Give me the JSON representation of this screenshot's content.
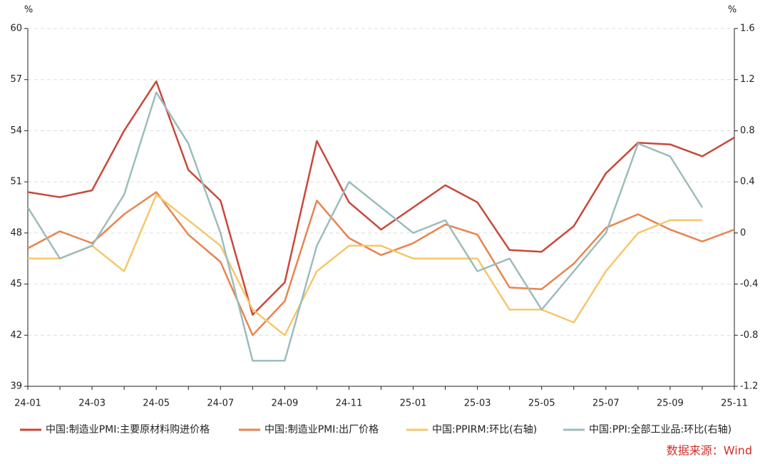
{
  "chart_data": {
    "type": "line",
    "y_label": "%",
    "y2_label": "%",
    "categories": [
      "24-01",
      null,
      "24-03",
      null,
      "24-05",
      null,
      "24-07",
      null,
      "24-09",
      null,
      "24-11",
      null,
      "25-01",
      null,
      "25-03",
      null,
      "25-05",
      null,
      "25-07",
      null,
      "25-09",
      null,
      "25-11"
    ],
    "ylim": [
      39,
      60
    ],
    "yticks": [
      39,
      42,
      45,
      48,
      51,
      54,
      57,
      60
    ],
    "y2lim": [
      -1.2,
      1.6
    ],
    "y2ticks": [
      -1.2,
      -0.8,
      -0.4,
      0,
      0.4,
      0.8,
      1.2,
      1.6
    ],
    "grid": true,
    "series": [
      {
        "name": "中国:制造业PMI:主要原材料购进价格",
        "color": "#c8483a",
        "values": [
          50.4,
          50.1,
          50.5,
          54.0,
          56.9,
          51.7,
          49.9,
          43.2,
          45.1,
          53.4,
          49.8,
          48.2,
          49.5,
          50.8,
          49.8,
          47.0,
          46.9,
          48.4,
          51.5,
          53.3,
          53.2,
          52.5,
          53.6
        ]
      },
      {
        "name": "中国:制造业PMI:出厂价格",
        "color": "#e8844e",
        "values": [
          47.1,
          48.1,
          47.4,
          49.1,
          50.4,
          47.9,
          46.3,
          42.0,
          44.0,
          49.9,
          47.7,
          46.7,
          47.4,
          48.5,
          47.9,
          44.8,
          44.7,
          46.2,
          48.3,
          49.1,
          48.2,
          47.5,
          48.2
        ]
      },
      {
        "name": "中国:PPIRM:环比(右轴)",
        "color": "#f5c76a",
        "axis": "y2",
        "values": [
          -0.2,
          -0.2,
          -0.1,
          -0.3,
          0.3,
          0.1,
          -0.1,
          -0.6,
          -0.8,
          -0.3,
          -0.1,
          -0.1,
          -0.2,
          -0.2,
          -0.2,
          -0.6,
          -0.6,
          -0.7,
          -0.3,
          0.0,
          0.1,
          0.1,
          null
        ]
      },
      {
        "name": "中国:PPI:全部工业品:环比(右轴)",
        "color": "#9dbcbc",
        "axis": "y2",
        "values": [
          0.2,
          -0.2,
          -0.1,
          0.3,
          1.1,
          0.7,
          0.0,
          -1.0,
          -1.0,
          -0.1,
          0.4,
          0.2,
          0.0,
          0.1,
          -0.3,
          -0.2,
          -0.6,
          -0.3,
          0.0,
          0.7,
          0.6,
          0.2,
          null
        ]
      }
    ],
    "source": "数据来源：Wind"
  }
}
